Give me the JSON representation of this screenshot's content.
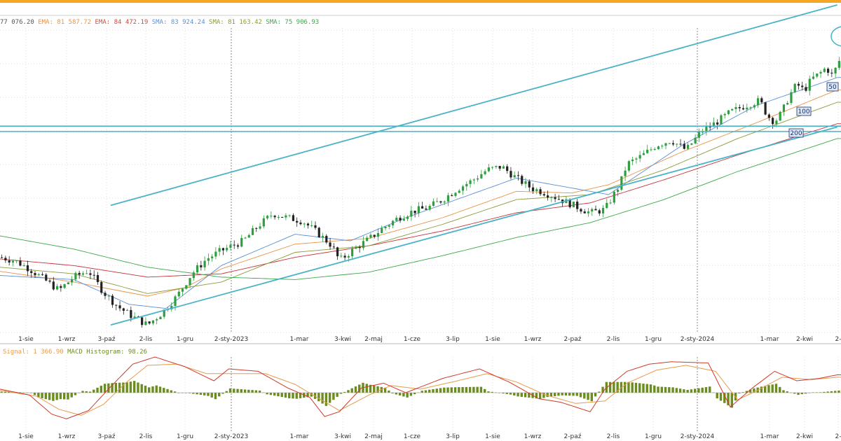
{
  "colors": {
    "top_bar": "#f5a623",
    "grid": "#dddddd",
    "up_candle": "#2e9e3e",
    "down_candle": "#222222",
    "channel": "#4ab3c8",
    "ema_fast": "#e8944a",
    "sma50": "#5a8fd6",
    "sma100": "#8a9a3a",
    "sma200": "#c8313a",
    "sma_long": "#3aa84a",
    "macd_line": "#d03a2a",
    "signal_line": "#e89a4a",
    "histogram": "#6b8c1f"
  },
  "main_legend": {
    "items": [
      {
        "text": "77 076.20",
        "color": "#555555"
      },
      {
        "text": "EMA: 81 587.72",
        "color": "#e8944a"
      },
      {
        "text": "EMA: 84 472.19",
        "color": "#d14a3a"
      },
      {
        "text": "SMA: 83 924.24",
        "color": "#5a8fd6"
      },
      {
        "text": "SMA: 81 163.42",
        "color": "#8a9a3a"
      },
      {
        "text": "SMA: 75 906.93",
        "color": "#3aa84a"
      }
    ]
  },
  "macd_legend": {
    "items": [
      {
        "text": "Signal: 1 366.90",
        "color": "#e89a4a"
      },
      {
        "text": "MACD Histogram: 98.26",
        "color": "#6b8c1f"
      }
    ]
  },
  "badges": [
    "50",
    "100",
    "200"
  ],
  "chart_data": {
    "type": "candlestick",
    "x_tick_labels": [
      "1-sie",
      "1-wrz",
      "3-paź",
      "2-lis",
      "1-gru",
      "2-sty-2023",
      "1-mar",
      "3-kwi",
      "2-maj",
      "1-cze",
      "3-lip",
      "1-sie",
      "1-wrz",
      "2-paź",
      "2-lis",
      "1-gru",
      "2-sty-2024",
      "1-mar",
      "2-kwi",
      "2-"
    ],
    "price_path": [
      [
        0,
        67200
      ],
      [
        4,
        66800
      ],
      [
        8,
        65800
      ],
      [
        12,
        64500
      ],
      [
        16,
        63200
      ],
      [
        20,
        64800
      ],
      [
        24,
        65600
      ],
      [
        28,
        63000
      ],
      [
        32,
        61200
      ],
      [
        36,
        60000
      ],
      [
        40,
        59000
      ],
      [
        44,
        60500
      ],
      [
        48,
        62500
      ],
      [
        52,
        65200
      ],
      [
        56,
        67000
      ],
      [
        60,
        68000
      ],
      [
        66,
        69200
      ],
      [
        70,
        71000
      ],
      [
        74,
        72500
      ],
      [
        78,
        72000
      ],
      [
        82,
        71600
      ],
      [
        86,
        70200
      ],
      [
        90,
        68600
      ],
      [
        92,
        66800
      ],
      [
        96,
        68200
      ],
      [
        100,
        69400
      ],
      [
        104,
        70800
      ],
      [
        108,
        72000
      ],
      [
        112,
        72800
      ],
      [
        116,
        73200
      ],
      [
        120,
        74200
      ],
      [
        124,
        75500
      ],
      [
        128,
        76500
      ],
      [
        132,
        77800
      ],
      [
        136,
        78200
      ],
      [
        140,
        76800
      ],
      [
        144,
        75600
      ],
      [
        148,
        75000
      ],
      [
        152,
        74200
      ],
      [
        156,
        73400
      ],
      [
        160,
        72600
      ],
      [
        164,
        73000
      ],
      [
        168,
        76000
      ],
      [
        170,
        78500
      ],
      [
        174,
        79500
      ],
      [
        178,
        80800
      ],
      [
        182,
        81400
      ],
      [
        186,
        80200
      ],
      [
        190,
        82400
      ],
      [
        194,
        83500
      ],
      [
        198,
        84800
      ],
      [
        202,
        85600
      ],
      [
        206,
        86200
      ],
      [
        208,
        84400
      ],
      [
        210,
        83600
      ],
      [
        212,
        84800
      ],
      [
        214,
        86800
      ],
      [
        216,
        88200
      ],
      [
        218,
        87400
      ],
      [
        220,
        88800
      ],
      [
        222,
        89400
      ],
      [
        224,
        90200
      ],
      [
        226,
        89000
      ],
      [
        227,
        91000
      ]
    ],
    "series": [
      {
        "name": "EMA",
        "value": 81587.72,
        "values": [
          [
            0,
            65500
          ],
          [
            20,
            64200
          ],
          [
            40,
            62500
          ],
          [
            50,
            63500
          ],
          [
            60,
            65800
          ],
          [
            80,
            68800
          ],
          [
            100,
            69500
          ],
          [
            120,
            72000
          ],
          [
            140,
            75200
          ],
          [
            155,
            75000
          ],
          [
            165,
            76000
          ],
          [
            185,
            80000
          ],
          [
            205,
            83500
          ],
          [
            227,
            87500
          ]
        ]
      },
      {
        "name": "EMA",
        "value": 84472.19,
        "values": [
          [
            0,
            67000
          ],
          [
            20,
            66200
          ],
          [
            40,
            64800
          ],
          [
            60,
            65200
          ],
          [
            80,
            67200
          ],
          [
            100,
            68600
          ],
          [
            120,
            70400
          ],
          [
            140,
            72600
          ],
          [
            160,
            73800
          ],
          [
            180,
            76600
          ],
          [
            200,
            79600
          ],
          [
            227,
            83400
          ]
        ]
      },
      {
        "name": "SMA",
        "value": 83924.24,
        "values": [
          [
            0,
            65000
          ],
          [
            20,
            64500
          ],
          [
            35,
            61500
          ],
          [
            45,
            61000
          ],
          [
            60,
            66200
          ],
          [
            80,
            70000
          ],
          [
            95,
            69200
          ],
          [
            110,
            72000
          ],
          [
            140,
            76800
          ],
          [
            150,
            76000
          ],
          [
            165,
            74800
          ],
          [
            185,
            80800
          ],
          [
            205,
            85600
          ],
          [
            227,
            89000
          ]
        ]
      },
      {
        "name": "SMA",
        "value": 81163.42,
        "values": [
          [
            0,
            66000
          ],
          [
            20,
            65200
          ],
          [
            40,
            62800
          ],
          [
            60,
            64200
          ],
          [
            80,
            67800
          ],
          [
            100,
            68600
          ],
          [
            120,
            71200
          ],
          [
            140,
            74200
          ],
          [
            160,
            74800
          ],
          [
            180,
            77800
          ],
          [
            200,
            81600
          ],
          [
            227,
            86000
          ]
        ]
      },
      {
        "name": "SMA",
        "value": 75906.93,
        "values": [
          [
            0,
            69800
          ],
          [
            20,
            68200
          ],
          [
            40,
            66000
          ],
          [
            60,
            64800
          ],
          [
            80,
            64500
          ],
          [
            100,
            65400
          ],
          [
            120,
            67400
          ],
          [
            140,
            69600
          ],
          [
            160,
            71400
          ],
          [
            180,
            74200
          ],
          [
            200,
            77600
          ],
          [
            227,
            81600
          ]
        ]
      }
    ],
    "channel_upper": [
      [
        30,
        73500
      ],
      [
        227,
        97800
      ]
    ],
    "channel_lower": [
      [
        30,
        59000
      ],
      [
        227,
        83000
      ]
    ],
    "horizontal_levels": [
      83100,
      82450
    ],
    "ylim": [
      58000,
      95000
    ],
    "xlim": [
      0,
      228
    ],
    "macd": {
      "signal": 1366.9,
      "histogram_value": 98.26,
      "ylim": [
        -3000,
        3000
      ],
      "macd_line": [
        [
          0,
          300
        ],
        [
          8,
          -200
        ],
        [
          14,
          -1800
        ],
        [
          18,
          -2200
        ],
        [
          24,
          -1500
        ],
        [
          30,
          500
        ],
        [
          36,
          2400
        ],
        [
          42,
          3000
        ],
        [
          50,
          2200
        ],
        [
          58,
          1000
        ],
        [
          62,
          2000
        ],
        [
          70,
          1800
        ],
        [
          78,
          400
        ],
        [
          84,
          -400
        ],
        [
          88,
          -2000
        ],
        [
          92,
          -1600
        ],
        [
          98,
          400
        ],
        [
          104,
          800
        ],
        [
          110,
          0
        ],
        [
          120,
          1200
        ],
        [
          130,
          2000
        ],
        [
          138,
          900
        ],
        [
          146,
          -500
        ],
        [
          152,
          -800
        ],
        [
          160,
          -1600
        ],
        [
          164,
          300
        ],
        [
          170,
          1800
        ],
        [
          176,
          2400
        ],
        [
          182,
          2600
        ],
        [
          192,
          2500
        ],
        [
          198,
          -1200
        ],
        [
          204,
          400
        ],
        [
          210,
          1800
        ],
        [
          216,
          1000
        ],
        [
          222,
          1200
        ],
        [
          227,
          1500
        ]
      ],
      "signal_line": [
        [
          0,
          200
        ],
        [
          10,
          -300
        ],
        [
          16,
          -1400
        ],
        [
          22,
          -1900
        ],
        [
          28,
          -1000
        ],
        [
          34,
          800
        ],
        [
          40,
          2300
        ],
        [
          48,
          2400
        ],
        [
          56,
          1600
        ],
        [
          62,
          1600
        ],
        [
          72,
          1600
        ],
        [
          80,
          700
        ],
        [
          86,
          -400
        ],
        [
          92,
          -1500
        ],
        [
          100,
          -200
        ],
        [
          106,
          600
        ],
        [
          114,
          300
        ],
        [
          124,
          1000
        ],
        [
          132,
          1600
        ],
        [
          140,
          900
        ],
        [
          148,
          -200
        ],
        [
          156,
          -900
        ],
        [
          164,
          -700
        ],
        [
          170,
          800
        ],
        [
          178,
          1900
        ],
        [
          186,
          2300
        ],
        [
          194,
          1800
        ],
        [
          200,
          -600
        ],
        [
          206,
          300
        ],
        [
          212,
          1300
        ],
        [
          220,
          1100
        ],
        [
          227,
          1300
        ]
      ]
    }
  }
}
